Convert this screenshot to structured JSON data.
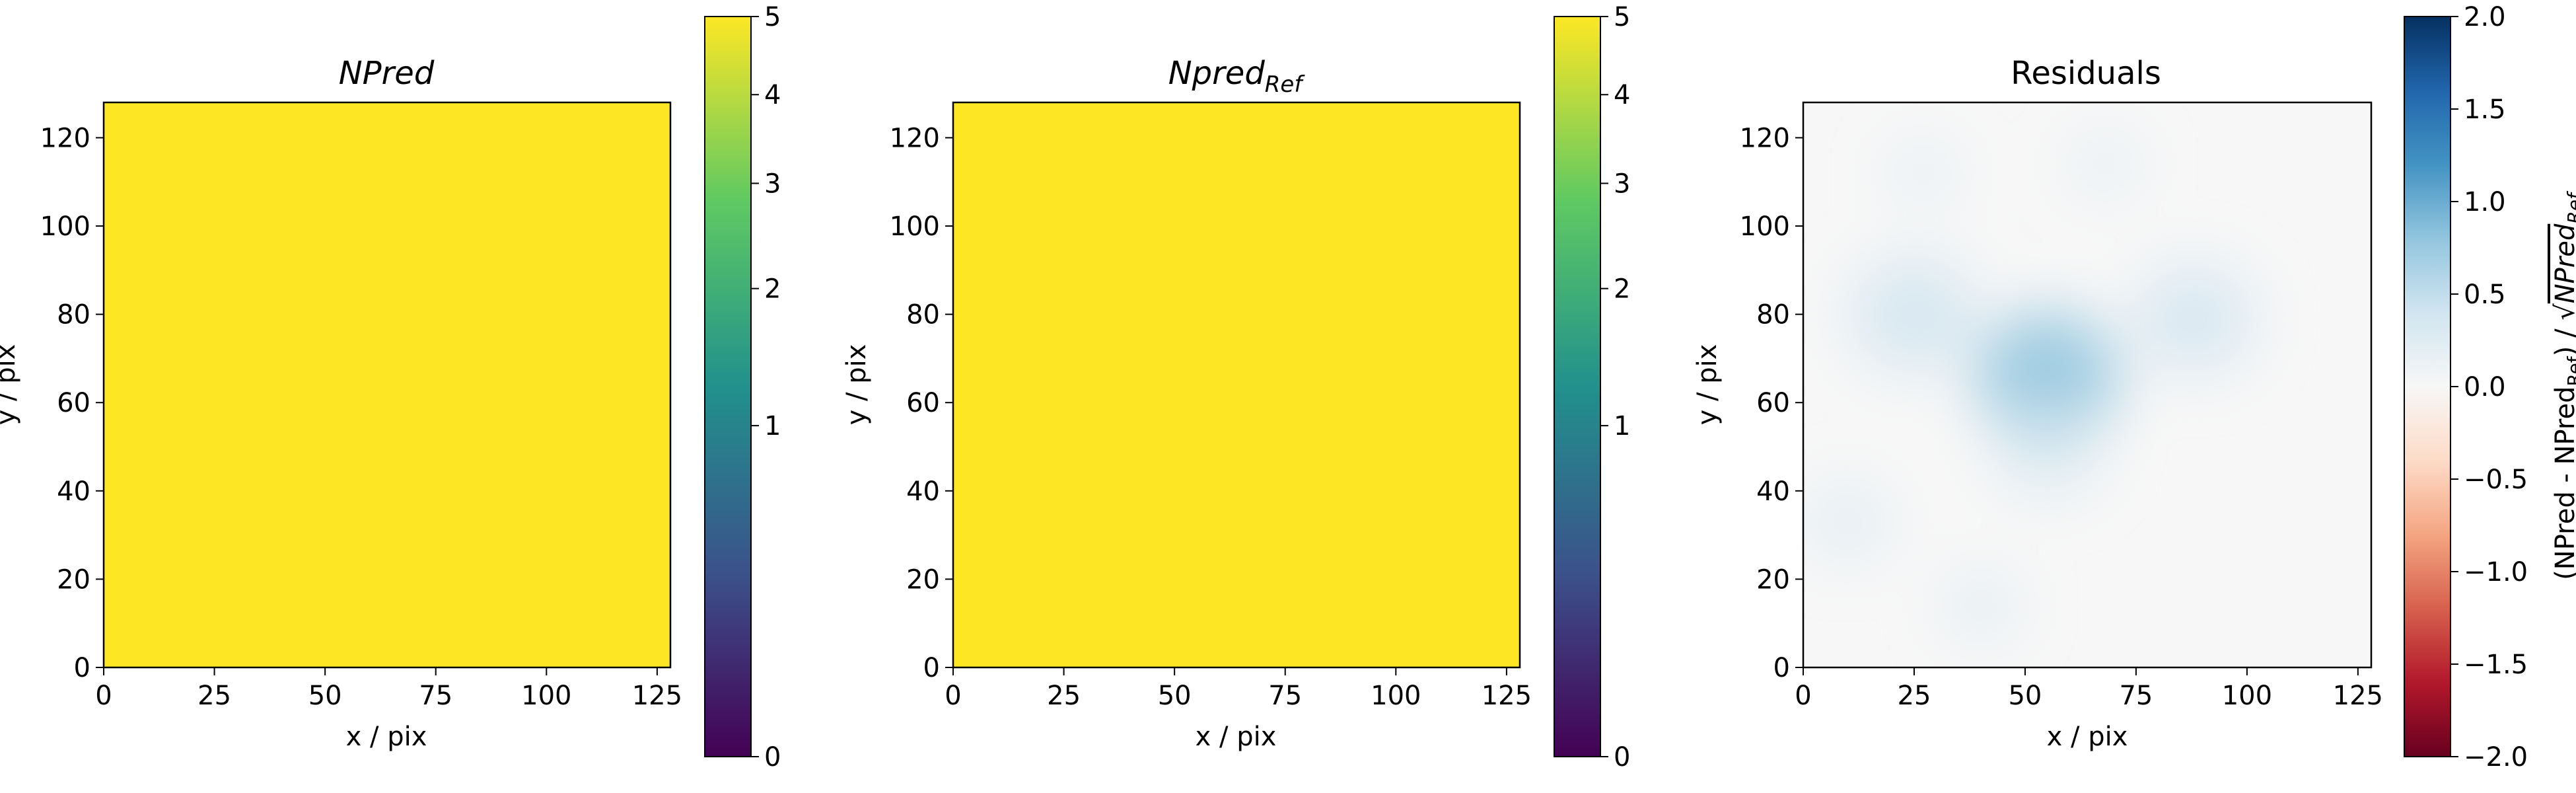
{
  "chart_data": [
    {
      "type": "heatmap",
      "title": "NPred",
      "xlabel": "x / pix",
      "ylabel": "y / pix",
      "xlim": [
        0,
        128
      ],
      "ylim": [
        0,
        128
      ],
      "xticks": [
        0,
        25,
        50,
        75,
        100,
        125
      ],
      "yticks": [
        0,
        20,
        40,
        60,
        80,
        100,
        120
      ],
      "fill_value": 5,
      "colormap": "viridis",
      "colorbar": {
        "scale": "sqrt",
        "range": [
          0,
          5
        ],
        "ticks": [
          0,
          1,
          2,
          3,
          4,
          5
        ],
        "stops": [
          "#440154",
          "#3b528b",
          "#21918c",
          "#5ec962",
          "#fde725"
        ]
      }
    },
    {
      "type": "heatmap",
      "title": "Npred",
      "title_subscript": "Ref",
      "xlabel": "x / pix",
      "ylabel": "y / pix",
      "xlim": [
        0,
        128
      ],
      "ylim": [
        0,
        128
      ],
      "xticks": [
        0,
        25,
        50,
        75,
        100,
        125
      ],
      "yticks": [
        0,
        20,
        40,
        60,
        80,
        100,
        120
      ],
      "fill_value": 5,
      "colormap": "viridis",
      "colorbar": {
        "scale": "sqrt",
        "range": [
          0,
          5
        ],
        "ticks": [
          0,
          1,
          2,
          3,
          4,
          5
        ],
        "stops": [
          "#440154",
          "#3b528b",
          "#21918c",
          "#5ec962",
          "#fde725"
        ]
      }
    },
    {
      "type": "heatmap",
      "title": "Residuals",
      "xlabel": "x / pix",
      "ylabel": "y / pix",
      "xlim": [
        0,
        128
      ],
      "ylim": [
        0,
        128
      ],
      "xticks": [
        0,
        25,
        50,
        75,
        100,
        125
      ],
      "yticks": [
        0,
        20,
        40,
        60,
        80,
        100,
        120
      ],
      "background_value": 0.0,
      "colormap": "RdBu",
      "blobs": [
        {
          "x": 25,
          "y": 80,
          "value": 0.5
        },
        {
          "x": 55,
          "y": 66,
          "value": 0.6
        },
        {
          "x": 55,
          "y": 50,
          "value": 0.35
        },
        {
          "x": 88,
          "y": 79,
          "value": 0.45
        },
        {
          "x": 10,
          "y": 33,
          "value": 0.2
        },
        {
          "x": 40,
          "y": 14,
          "value": 0.15
        },
        {
          "x": 27,
          "y": 112,
          "value": 0.1
        },
        {
          "x": 68,
          "y": 114,
          "value": 0.1
        }
      ],
      "colorbar": {
        "label": "(NPred - NPred",
        "label_subscript": "Ref",
        "label_mid": ") / √",
        "label_tail": "NPred",
        "range": [
          -2.0,
          2.0
        ],
        "ticks": [
          "−2.0",
          "−1.5",
          "−1.0",
          "−0.5",
          "0.0",
          "0.5",
          "1.0",
          "1.5",
          "2.0"
        ],
        "stops": [
          "#67001f",
          "#b2182b",
          "#d6604d",
          "#f4a582",
          "#fddbc7",
          "#f7f7f7",
          "#d1e5f0",
          "#92c5de",
          "#4393c3",
          "#2166ac",
          "#053061"
        ]
      }
    }
  ]
}
